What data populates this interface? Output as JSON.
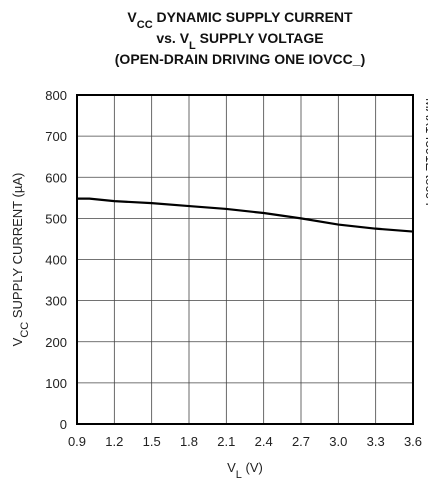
{
  "chart_data": {
    "type": "line",
    "title": [
      [
        "V",
        "CC",
        " DYNAMIC SUPPLY CURRENT"
      ],
      [
        "vs. V",
        "L",
        " SUPPLY VOLTAGE"
      ],
      [
        "(OPEN-DRAIN DRIVING ONE IOVCC_)"
      ]
    ],
    "xlabel": [
      "V",
      "L",
      " (V)"
    ],
    "ylabel": [
      "V",
      "CC",
      " SUPPLY CURRENT (µA)"
    ],
    "annotation": "MAX14591E toc04",
    "x": [
      0.9,
      1.0,
      1.2,
      1.5,
      1.8,
      2.1,
      2.4,
      2.7,
      3.0,
      3.3,
      3.6
    ],
    "series": [
      {
        "color": "#000000",
        "values": [
          548,
          548,
          542,
          537,
          530,
          523,
          513,
          500,
          485,
          475,
          468
        ]
      }
    ],
    "xlim": [
      0.9,
      3.6
    ],
    "xticks": [
      0.9,
      1.2,
      1.5,
      1.8,
      2.1,
      2.4,
      2.7,
      {
        "value": 3,
        "label": "3.0"
      },
      3.3,
      3.6
    ],
    "ylim": [
      0,
      800
    ],
    "yticks": [
      0,
      100,
      200,
      300,
      400,
      500,
      600,
      700,
      800
    ],
    "grid": true
  }
}
